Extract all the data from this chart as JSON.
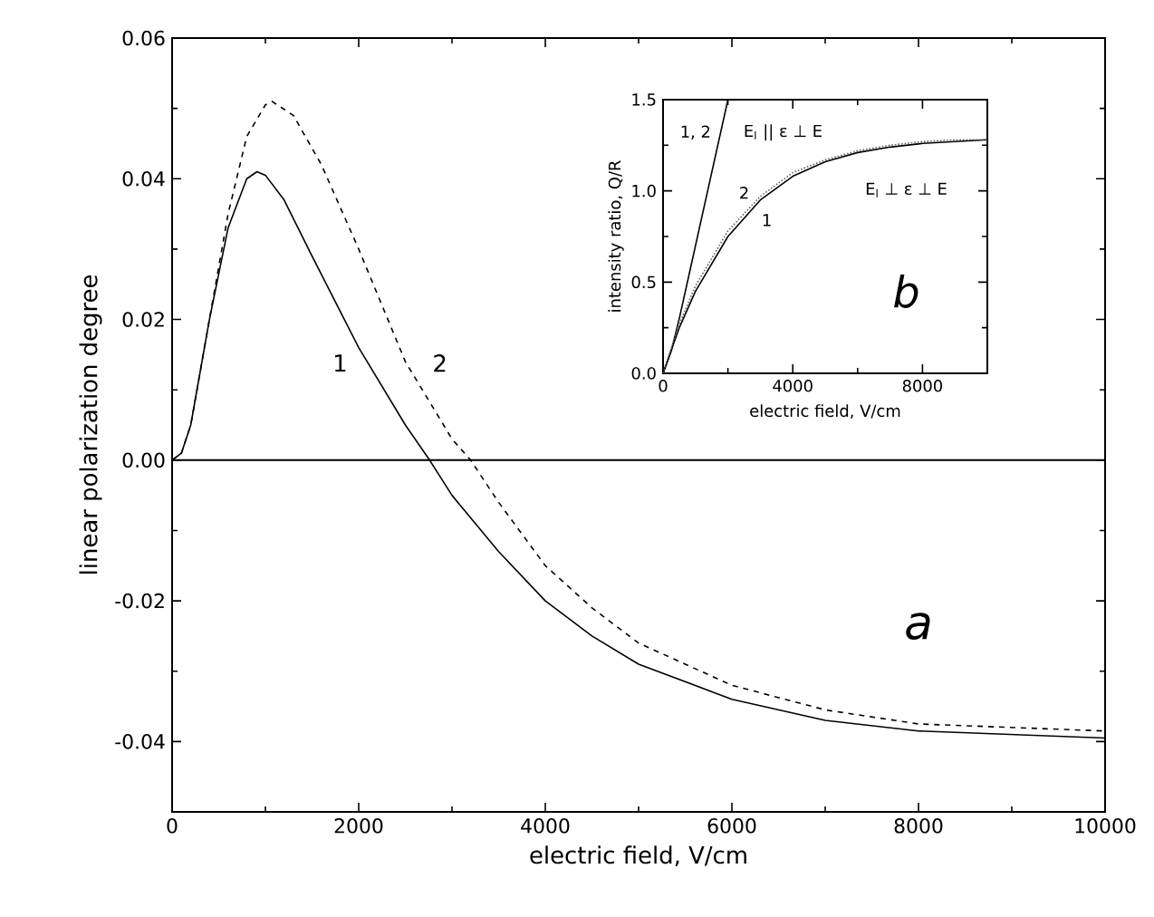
{
  "chart_data": [
    {
      "type": "line",
      "xlabel": "electric field, V/cm",
      "ylabel": "linear polarization degree",
      "xlim": [
        0,
        10000
      ],
      "ylim": [
        -0.05,
        0.06
      ],
      "xticks": [
        0,
        2000,
        4000,
        6000,
        8000,
        10000
      ],
      "yticks": [
        {
          "value": -0.04,
          "label": "-0.04"
        },
        {
          "value": -0.02,
          "label": "-0.02"
        },
        {
          "value": 0,
          "label": "0.00"
        },
        {
          "value": 0.02,
          "label": "0.02"
        },
        {
          "value": 0.04,
          "label": "0.04"
        },
        {
          "value": 0.06,
          "label": "0.06"
        }
      ],
      "ref_lines": [
        {
          "axis": "y",
          "value": 0,
          "color": "#000000",
          "line_style": "solid"
        }
      ],
      "series": [
        {
          "color": "#000000",
          "line_style": "solid",
          "x": [
            0,
            100,
            200,
            400,
            600,
            800,
            910,
            1000,
            1200,
            1500,
            2000,
            2500,
            2760,
            3000,
            3500,
            4000,
            4500,
            5000,
            6000,
            7000,
            8000,
            9000,
            10000
          ],
          "values": [
            0,
            0.001,
            0.005,
            0.02,
            0.033,
            0.04,
            0.041,
            0.0405,
            0.037,
            0.029,
            0.016,
            0.005,
            0,
            -0.005,
            -0.013,
            -0.02,
            -0.025,
            -0.029,
            -0.034,
            -0.037,
            -0.0385,
            -0.039,
            -0.0395
          ]
        },
        {
          "color": "#000000",
          "line_style": "dashed",
          "x": [
            0,
            100,
            200,
            400,
            600,
            800,
            1000,
            1070,
            1300,
            1600,
            2000,
            2500,
            3000,
            3200,
            3500,
            4000,
            4500,
            5000,
            6000,
            7000,
            8000,
            9000,
            10000
          ],
          "values": [
            0,
            0.001,
            0.005,
            0.02,
            0.035,
            0.046,
            0.0505,
            0.051,
            0.049,
            0.042,
            0.03,
            0.014,
            0.003,
            0,
            -0.006,
            -0.015,
            -0.021,
            -0.026,
            -0.032,
            -0.0355,
            -0.0375,
            -0.038,
            -0.0385
          ]
        }
      ],
      "annotations": [
        "1",
        "2",
        "a"
      ]
    },
    {
      "type": "line",
      "xlabel": "electric field,  V/cm",
      "ylabel": "intensity ratio, Q/R",
      "xlim": [
        0,
        10000
      ],
      "ylim": [
        0,
        1.5
      ],
      "xticks": [
        0,
        4000,
        8000
      ],
      "yticks": [
        {
          "value": 0,
          "label": "0.0"
        },
        {
          "value": 0.5,
          "label": "0.5"
        },
        {
          "value": 1,
          "label": "1.0"
        },
        {
          "value": 1.5,
          "label": "1.5"
        }
      ],
      "series": [
        {
          "color": "#000000",
          "line_style": "solid",
          "x": [
            0,
            250,
            500,
            1000,
            1500,
            2000
          ],
          "values": [
            0,
            0.12,
            0.3,
            0.7,
            1.1,
            1.5
          ]
        },
        {
          "color": "#000000",
          "line_style": "solid",
          "x": [
            0,
            500,
            1000,
            2000,
            3000,
            4000,
            5000,
            6000,
            7000,
            8000,
            9000,
            10000
          ],
          "values": [
            0,
            0.25,
            0.45,
            0.75,
            0.95,
            1.08,
            1.16,
            1.21,
            1.24,
            1.26,
            1.27,
            1.28
          ]
        },
        {
          "color": "#606060",
          "line_style": "dotted",
          "x": [
            0,
            500,
            1000,
            2000,
            3000,
            4000,
            5000,
            6000,
            7000,
            8000,
            9000,
            10000
          ],
          "values": [
            0,
            0.27,
            0.48,
            0.78,
            0.97,
            1.1,
            1.17,
            1.22,
            1.25,
            1.27,
            1.28,
            1.28
          ]
        }
      ],
      "annotations": [
        "1, 2",
        "E$_{l}$ || ε ⊥ E",
        "2",
        "1",
        "E$_{l}$ ⊥ ε ⊥ E",
        "b"
      ]
    }
  ]
}
